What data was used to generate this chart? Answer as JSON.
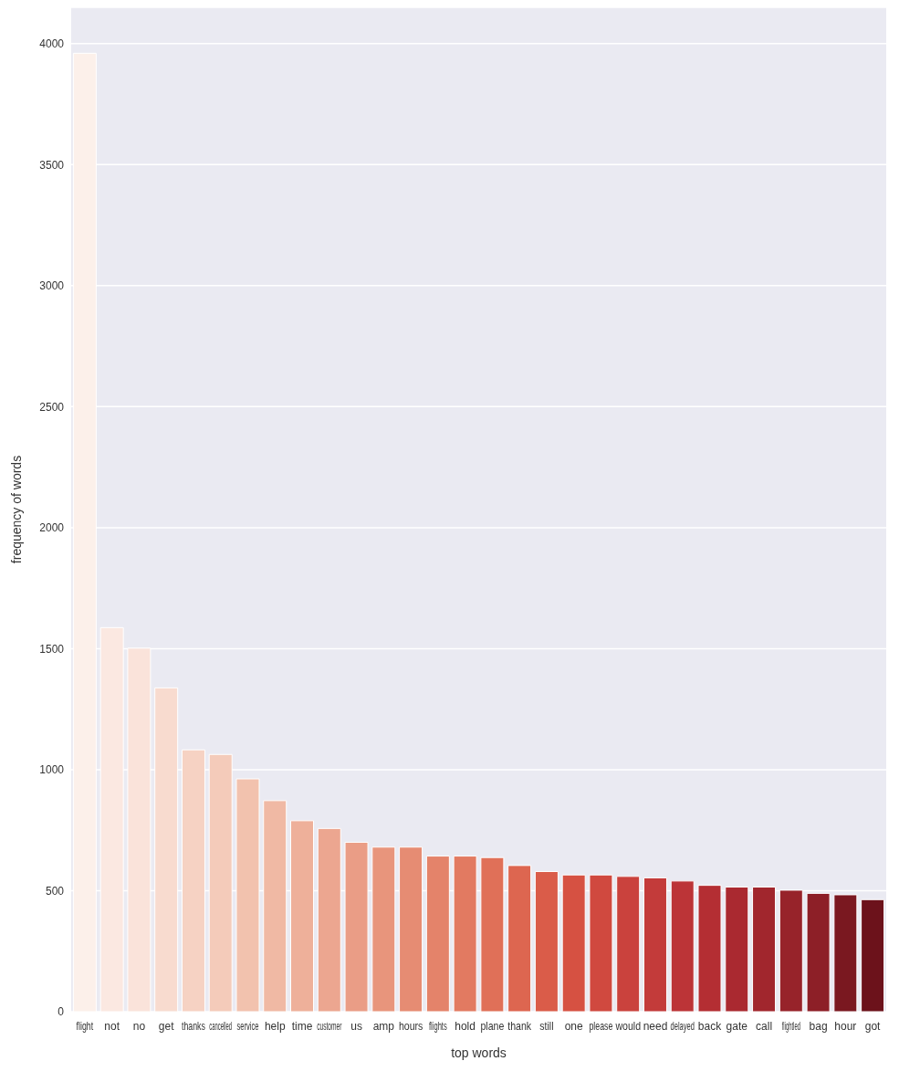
{
  "chart_data": {
    "type": "bar",
    "xlabel": "top words",
    "ylabel": "frequency of words",
    "categories": [
      "flight",
      "not",
      "no",
      "get",
      "thanks",
      "cancelled",
      "service",
      "help",
      "time",
      "customer",
      "us",
      "amp",
      "hours",
      "flights",
      "hold",
      "plane",
      "thank",
      "still",
      "one",
      "please",
      "would",
      "need",
      "delayed",
      "back",
      "gate",
      "call",
      "flightled",
      "bag",
      "hour",
      "got"
    ],
    "values": [
      3960,
      1587,
      1502,
      1338,
      1082,
      1063,
      962,
      872,
      789,
      757,
      700,
      680,
      680,
      643,
      643,
      637,
      604,
      579,
      565,
      565,
      559,
      553,
      540,
      522,
      515,
      515,
      502,
      489,
      483,
      463
    ],
    "colors": [
      "#fcf0ea",
      "#fbe8e1",
      "#fae3da",
      "#f8dbcf",
      "#f6d2c3",
      "#f4cbba",
      "#f2c2ae",
      "#f0b9a4",
      "#eeb09a",
      "#eca690",
      "#ea9d86",
      "#e8957c",
      "#e68c73",
      "#e4836a",
      "#e27a61",
      "#e07058",
      "#dd6650",
      "#da5c49",
      "#d65142",
      "#d0493f",
      "#ca423d",
      "#c33b3a",
      "#bc3437",
      "#b42e33",
      "#aa2930",
      "#a1262d",
      "#97232a",
      "#8d1f27",
      "#7a1820",
      "#6c121b"
    ],
    "ylim": [
      0,
      4150
    ],
    "yticks": [
      0,
      500,
      1000,
      1500,
      2000,
      2500,
      3000,
      3500,
      4000
    ],
    "grid": "y"
  }
}
